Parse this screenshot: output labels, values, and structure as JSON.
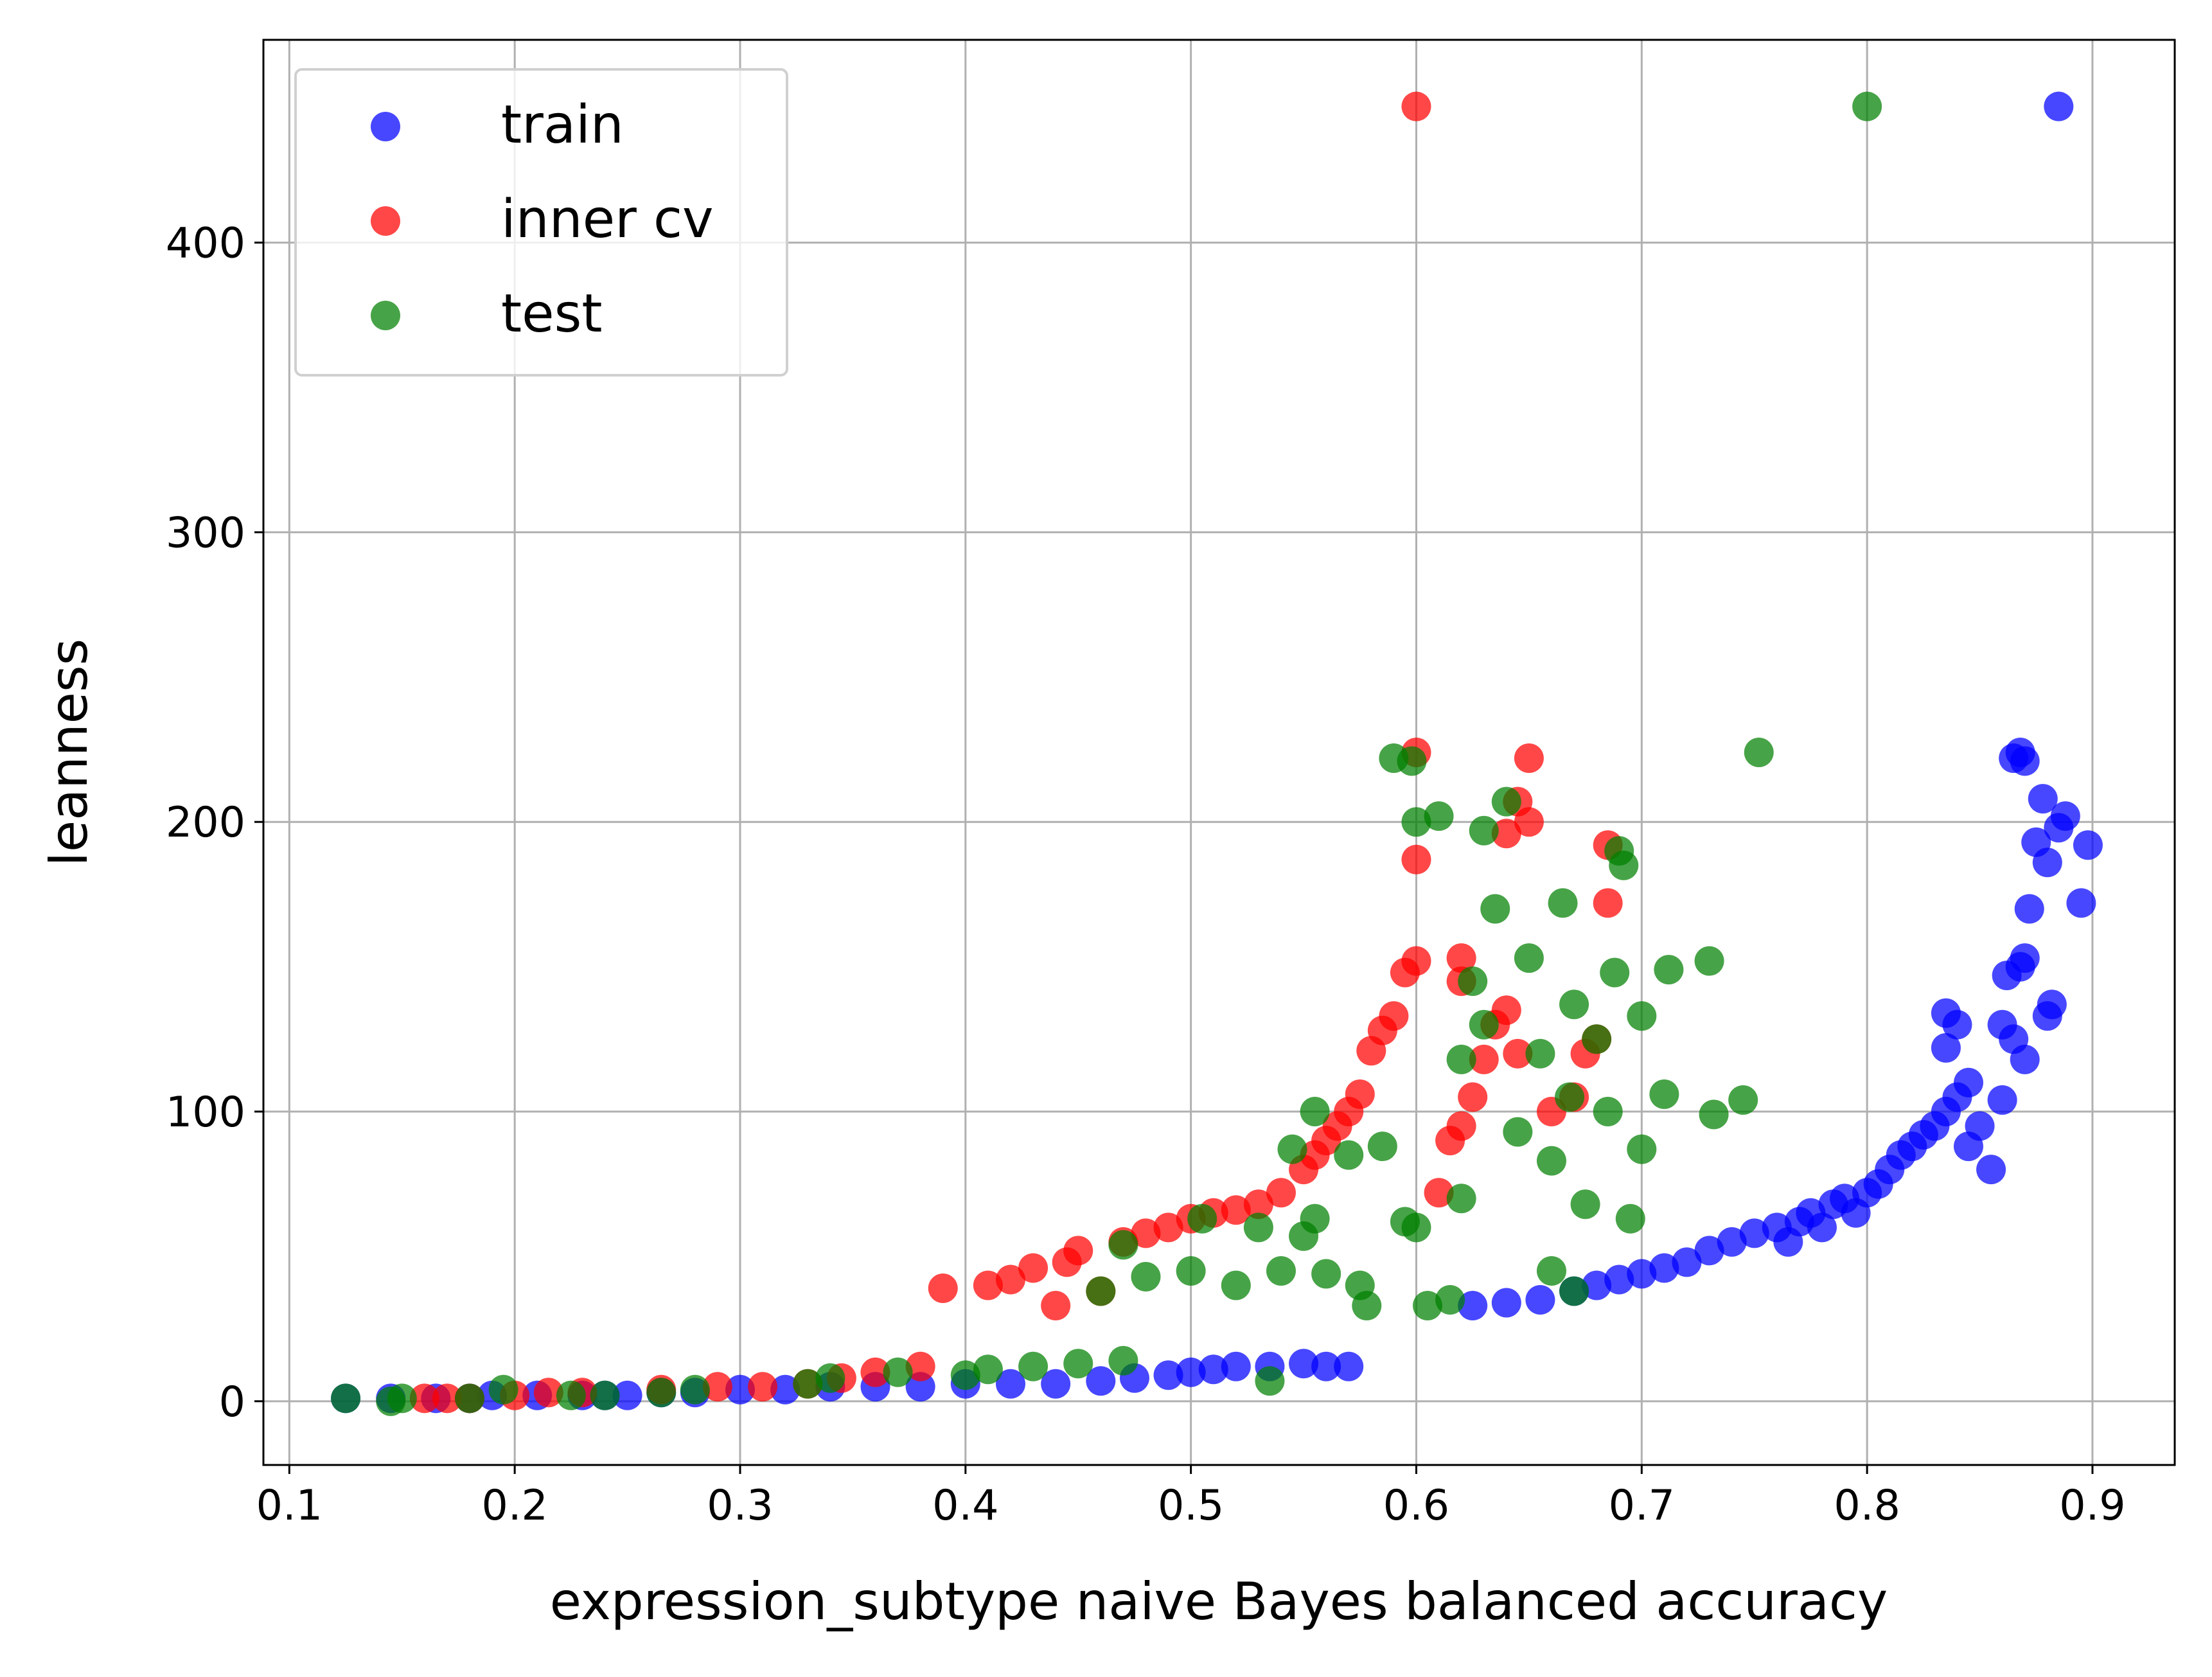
{
  "chart_data": {
    "type": "scatter",
    "title": "",
    "xlabel": "expression_subtype naive Bayes balanced accuracy",
    "ylabel": "leanness",
    "xlim": [
      0.0885,
      0.9365
    ],
    "ylim": [
      -22,
      470
    ],
    "xticks": [
      0.1,
      0.2,
      0.3,
      0.4,
      0.5,
      0.6,
      0.7,
      0.8,
      0.9
    ],
    "xtick_labels": [
      "0.1",
      "0.2",
      "0.3",
      "0.4",
      "0.5",
      "0.6",
      "0.7",
      "0.8",
      "0.9"
    ],
    "yticks": [
      0,
      100,
      200,
      300,
      400
    ],
    "ytick_labels": [
      "0",
      "100",
      "200",
      "300",
      "400"
    ],
    "grid": true,
    "legend_position": "top-left",
    "series": [
      {
        "name": "train",
        "color": "#0000ff",
        "points": [
          [
            0.125,
            1
          ],
          [
            0.145,
            1
          ],
          [
            0.165,
            1
          ],
          [
            0.18,
            1
          ],
          [
            0.19,
            2
          ],
          [
            0.21,
            2
          ],
          [
            0.23,
            2
          ],
          [
            0.24,
            2
          ],
          [
            0.25,
            2
          ],
          [
            0.265,
            3
          ],
          [
            0.28,
            3
          ],
          [
            0.3,
            4
          ],
          [
            0.32,
            4
          ],
          [
            0.34,
            5
          ],
          [
            0.36,
            5
          ],
          [
            0.38,
            5
          ],
          [
            0.4,
            6
          ],
          [
            0.42,
            6
          ],
          [
            0.44,
            6
          ],
          [
            0.46,
            7
          ],
          [
            0.475,
            8
          ],
          [
            0.49,
            9
          ],
          [
            0.5,
            10
          ],
          [
            0.51,
            11
          ],
          [
            0.52,
            12
          ],
          [
            0.535,
            12
          ],
          [
            0.55,
            13
          ],
          [
            0.56,
            12
          ],
          [
            0.57,
            12
          ],
          [
            0.625,
            33
          ],
          [
            0.64,
            34
          ],
          [
            0.655,
            35
          ],
          [
            0.67,
            38
          ],
          [
            0.68,
            40
          ],
          [
            0.69,
            42
          ],
          [
            0.7,
            44
          ],
          [
            0.71,
            46
          ],
          [
            0.72,
            48
          ],
          [
            0.73,
            52
          ],
          [
            0.74,
            55
          ],
          [
            0.75,
            58
          ],
          [
            0.76,
            60
          ],
          [
            0.765,
            55
          ],
          [
            0.77,
            62
          ],
          [
            0.775,
            65
          ],
          [
            0.78,
            60
          ],
          [
            0.785,
            68
          ],
          [
            0.79,
            70
          ],
          [
            0.795,
            65
          ],
          [
            0.8,
            72
          ],
          [
            0.805,
            75
          ],
          [
            0.81,
            80
          ],
          [
            0.815,
            85
          ],
          [
            0.82,
            88
          ],
          [
            0.825,
            92
          ],
          [
            0.83,
            95
          ],
          [
            0.835,
            100
          ],
          [
            0.84,
            105
          ],
          [
            0.845,
            110
          ],
          [
            0.85,
            95
          ],
          [
            0.855,
            80
          ],
          [
            0.835,
            122
          ],
          [
            0.835,
            134
          ],
          [
            0.84,
            130
          ],
          [
            0.845,
            88
          ],
          [
            0.86,
            104
          ],
          [
            0.86,
            130
          ],
          [
            0.862,
            147
          ],
          [
            0.865,
            125
          ],
          [
            0.868,
            150
          ],
          [
            0.87,
            118
          ],
          [
            0.87,
            153
          ],
          [
            0.872,
            170
          ],
          [
            0.875,
            193
          ],
          [
            0.878,
            208
          ],
          [
            0.88,
            186
          ],
          [
            0.88,
            133
          ],
          [
            0.882,
            137
          ],
          [
            0.885,
            198
          ],
          [
            0.888,
            202
          ],
          [
            0.895,
            172
          ],
          [
            0.898,
            192
          ],
          [
            0.865,
            222
          ],
          [
            0.868,
            224
          ],
          [
            0.87,
            221
          ],
          [
            0.885,
            447
          ]
        ]
      },
      {
        "name": "inner cv",
        "color": "#ff0000",
        "points": [
          [
            0.16,
            1
          ],
          [
            0.17,
            1
          ],
          [
            0.18,
            1
          ],
          [
            0.2,
            2
          ],
          [
            0.215,
            3
          ],
          [
            0.23,
            3
          ],
          [
            0.265,
            4
          ],
          [
            0.29,
            5
          ],
          [
            0.31,
            5
          ],
          [
            0.33,
            6
          ],
          [
            0.345,
            8
          ],
          [
            0.36,
            10
          ],
          [
            0.38,
            12
          ],
          [
            0.39,
            39
          ],
          [
            0.41,
            40
          ],
          [
            0.42,
            42
          ],
          [
            0.43,
            46
          ],
          [
            0.44,
            33
          ],
          [
            0.445,
            48
          ],
          [
            0.45,
            52
          ],
          [
            0.46,
            38
          ],
          [
            0.47,
            55
          ],
          [
            0.48,
            58
          ],
          [
            0.49,
            60
          ],
          [
            0.5,
            63
          ],
          [
            0.51,
            65
          ],
          [
            0.52,
            66
          ],
          [
            0.53,
            68
          ],
          [
            0.54,
            72
          ],
          [
            0.55,
            80
          ],
          [
            0.555,
            85
          ],
          [
            0.56,
            90
          ],
          [
            0.565,
            95
          ],
          [
            0.57,
            100
          ],
          [
            0.575,
            106
          ],
          [
            0.58,
            121
          ],
          [
            0.585,
            128
          ],
          [
            0.59,
            133
          ],
          [
            0.595,
            148
          ],
          [
            0.6,
            152
          ],
          [
            0.6,
            187
          ],
          [
            0.6,
            224
          ],
          [
            0.61,
            72
          ],
          [
            0.615,
            90
          ],
          [
            0.62,
            95
          ],
          [
            0.625,
            105
          ],
          [
            0.63,
            118
          ],
          [
            0.635,
            130
          ],
          [
            0.64,
            135
          ],
          [
            0.645,
            120
          ],
          [
            0.65,
            200
          ],
          [
            0.645,
            207
          ],
          [
            0.64,
            196
          ],
          [
            0.65,
            222
          ],
          [
            0.66,
            100
          ],
          [
            0.67,
            105
          ],
          [
            0.675,
            120
          ],
          [
            0.68,
            125
          ],
          [
            0.685,
            172
          ],
          [
            0.685,
            192
          ],
          [
            0.62,
            145
          ],
          [
            0.62,
            153
          ],
          [
            0.6,
            447
          ]
        ]
      },
      {
        "name": "test",
        "color": "#008000",
        "points": [
          [
            0.125,
            1
          ],
          [
            0.145,
            0
          ],
          [
            0.15,
            1
          ],
          [
            0.18,
            1
          ],
          [
            0.195,
            4
          ],
          [
            0.225,
            2
          ],
          [
            0.24,
            2
          ],
          [
            0.265,
            3
          ],
          [
            0.28,
            4
          ],
          [
            0.33,
            6
          ],
          [
            0.34,
            8
          ],
          [
            0.37,
            10
          ],
          [
            0.4,
            9
          ],
          [
            0.41,
            11
          ],
          [
            0.43,
            12
          ],
          [
            0.45,
            13
          ],
          [
            0.47,
            14
          ],
          [
            0.46,
            38
          ],
          [
            0.47,
            54
          ],
          [
            0.48,
            43
          ],
          [
            0.5,
            45
          ],
          [
            0.505,
            63
          ],
          [
            0.52,
            40
          ],
          [
            0.53,
            60
          ],
          [
            0.535,
            7
          ],
          [
            0.54,
            45
          ],
          [
            0.545,
            87
          ],
          [
            0.55,
            57
          ],
          [
            0.555,
            63
          ],
          [
            0.555,
            100
          ],
          [
            0.56,
            44
          ],
          [
            0.57,
            85
          ],
          [
            0.575,
            40
          ],
          [
            0.578,
            33
          ],
          [
            0.59,
            222
          ],
          [
            0.598,
            221
          ],
          [
            0.6,
            200
          ],
          [
            0.61,
            202
          ],
          [
            0.585,
            88
          ],
          [
            0.595,
            62
          ],
          [
            0.6,
            60
          ],
          [
            0.605,
            33
          ],
          [
            0.615,
            35
          ],
          [
            0.62,
            70
          ],
          [
            0.62,
            118
          ],
          [
            0.625,
            145
          ],
          [
            0.63,
            130
          ],
          [
            0.63,
            197
          ],
          [
            0.635,
            170
          ],
          [
            0.64,
            207
          ],
          [
            0.645,
            93
          ],
          [
            0.65,
            153
          ],
          [
            0.655,
            120
          ],
          [
            0.66,
            45
          ],
          [
            0.66,
            83
          ],
          [
            0.665,
            172
          ],
          [
            0.668,
            105
          ],
          [
            0.67,
            137
          ],
          [
            0.675,
            68
          ],
          [
            0.68,
            125
          ],
          [
            0.685,
            100
          ],
          [
            0.688,
            148
          ],
          [
            0.69,
            190
          ],
          [
            0.692,
            185
          ],
          [
            0.695,
            63
          ],
          [
            0.7,
            87
          ],
          [
            0.7,
            133
          ],
          [
            0.71,
            106
          ],
          [
            0.712,
            149
          ],
          [
            0.73,
            152
          ],
          [
            0.732,
            99
          ],
          [
            0.745,
            104
          ],
          [
            0.752,
            224
          ],
          [
            0.8,
            447
          ],
          [
            0.67,
            38
          ]
        ]
      }
    ]
  }
}
